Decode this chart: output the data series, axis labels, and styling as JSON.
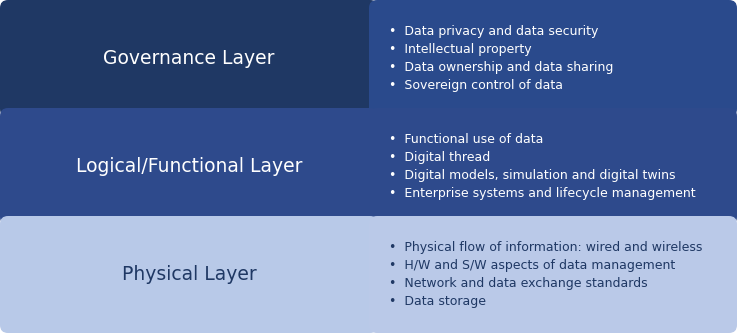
{
  "layers": [
    {
      "title": "Governance Layer",
      "bullets": [
        "Data privacy and data security",
        "Intellectual property",
        "Data ownership and data sharing",
        "Sovereign control of data"
      ],
      "left_color": "#1F3864",
      "right_color": "#2A4A8C",
      "title_color": "#FFFFFF",
      "bullet_color": "#FFFFFF"
    },
    {
      "title": "Logical/Functional Layer",
      "bullets": [
        "Functional use of data",
        "Digital thread",
        "Digital models, simulation and digital twins",
        "Enterprise systems and lifecycle management"
      ],
      "left_color": "#2E4A8C",
      "right_color": "#2E4A8C",
      "title_color": "#FFFFFF",
      "bullet_color": "#FFFFFF"
    },
    {
      "title": "Physical Layer",
      "bullets": [
        "Physical flow of information: wired and wireless",
        "H/W and S/W aspects of data management",
        "Network and data exchange standards",
        "Data storage"
      ],
      "left_color": "#B8C9E8",
      "right_color": "#BAC9E8",
      "title_color": "#1F3864",
      "bullet_color": "#1F3864"
    }
  ],
  "bg_color": "#FFFFFF",
  "title_fontsize": 13.5,
  "bullet_fontsize": 9.0,
  "fig_width": 7.37,
  "fig_height": 3.33,
  "dpi": 100
}
